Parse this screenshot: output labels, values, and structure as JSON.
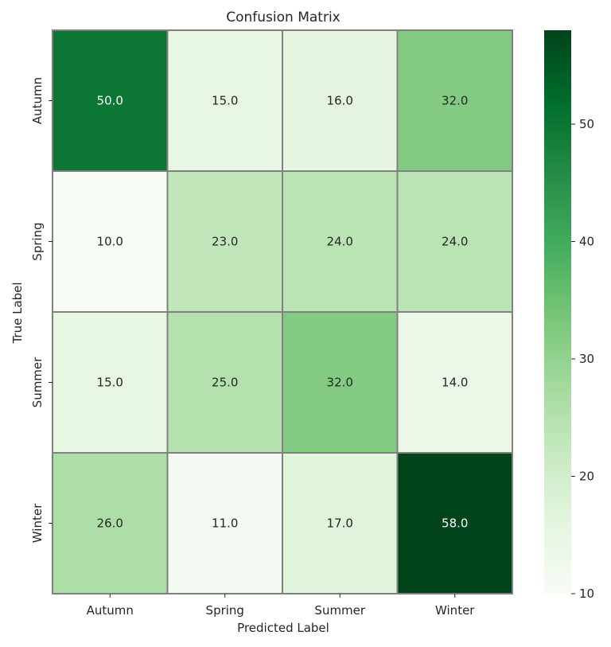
{
  "chart_data": {
    "type": "heatmap",
    "title": "Confusion Matrix",
    "xlabel": "Predicted Label",
    "ylabel": "True Label",
    "x_categories": [
      "Autumn",
      "Spring",
      "Summer",
      "Winter"
    ],
    "y_categories": [
      "Autumn",
      "Spring",
      "Summer",
      "Winter"
    ],
    "values": [
      [
        50.0,
        15.0,
        16.0,
        32.0
      ],
      [
        10.0,
        23.0,
        24.0,
        24.0
      ],
      [
        15.0,
        25.0,
        32.0,
        14.0
      ],
      [
        26.0,
        11.0,
        17.0,
        58.0
      ]
    ],
    "value_labels": [
      [
        "50.0",
        "15.0",
        "16.0",
        "32.0"
      ],
      [
        "10.0",
        "23.0",
        "24.0",
        "24.0"
      ],
      [
        "15.0",
        "25.0",
        "32.0",
        "14.0"
      ],
      [
        "26.0",
        "11.0",
        "17.0",
        "58.0"
      ]
    ],
    "colormap": "Greens",
    "color_range": [
      10,
      58
    ],
    "colorbar_ticks": [
      10,
      20,
      30,
      40,
      50
    ],
    "colors": {
      "low": "#f7fcf5",
      "high": "#00441b",
      "cell_border": "#808080",
      "text_dark": "#262626",
      "text_light": "#ffffff"
    }
  }
}
